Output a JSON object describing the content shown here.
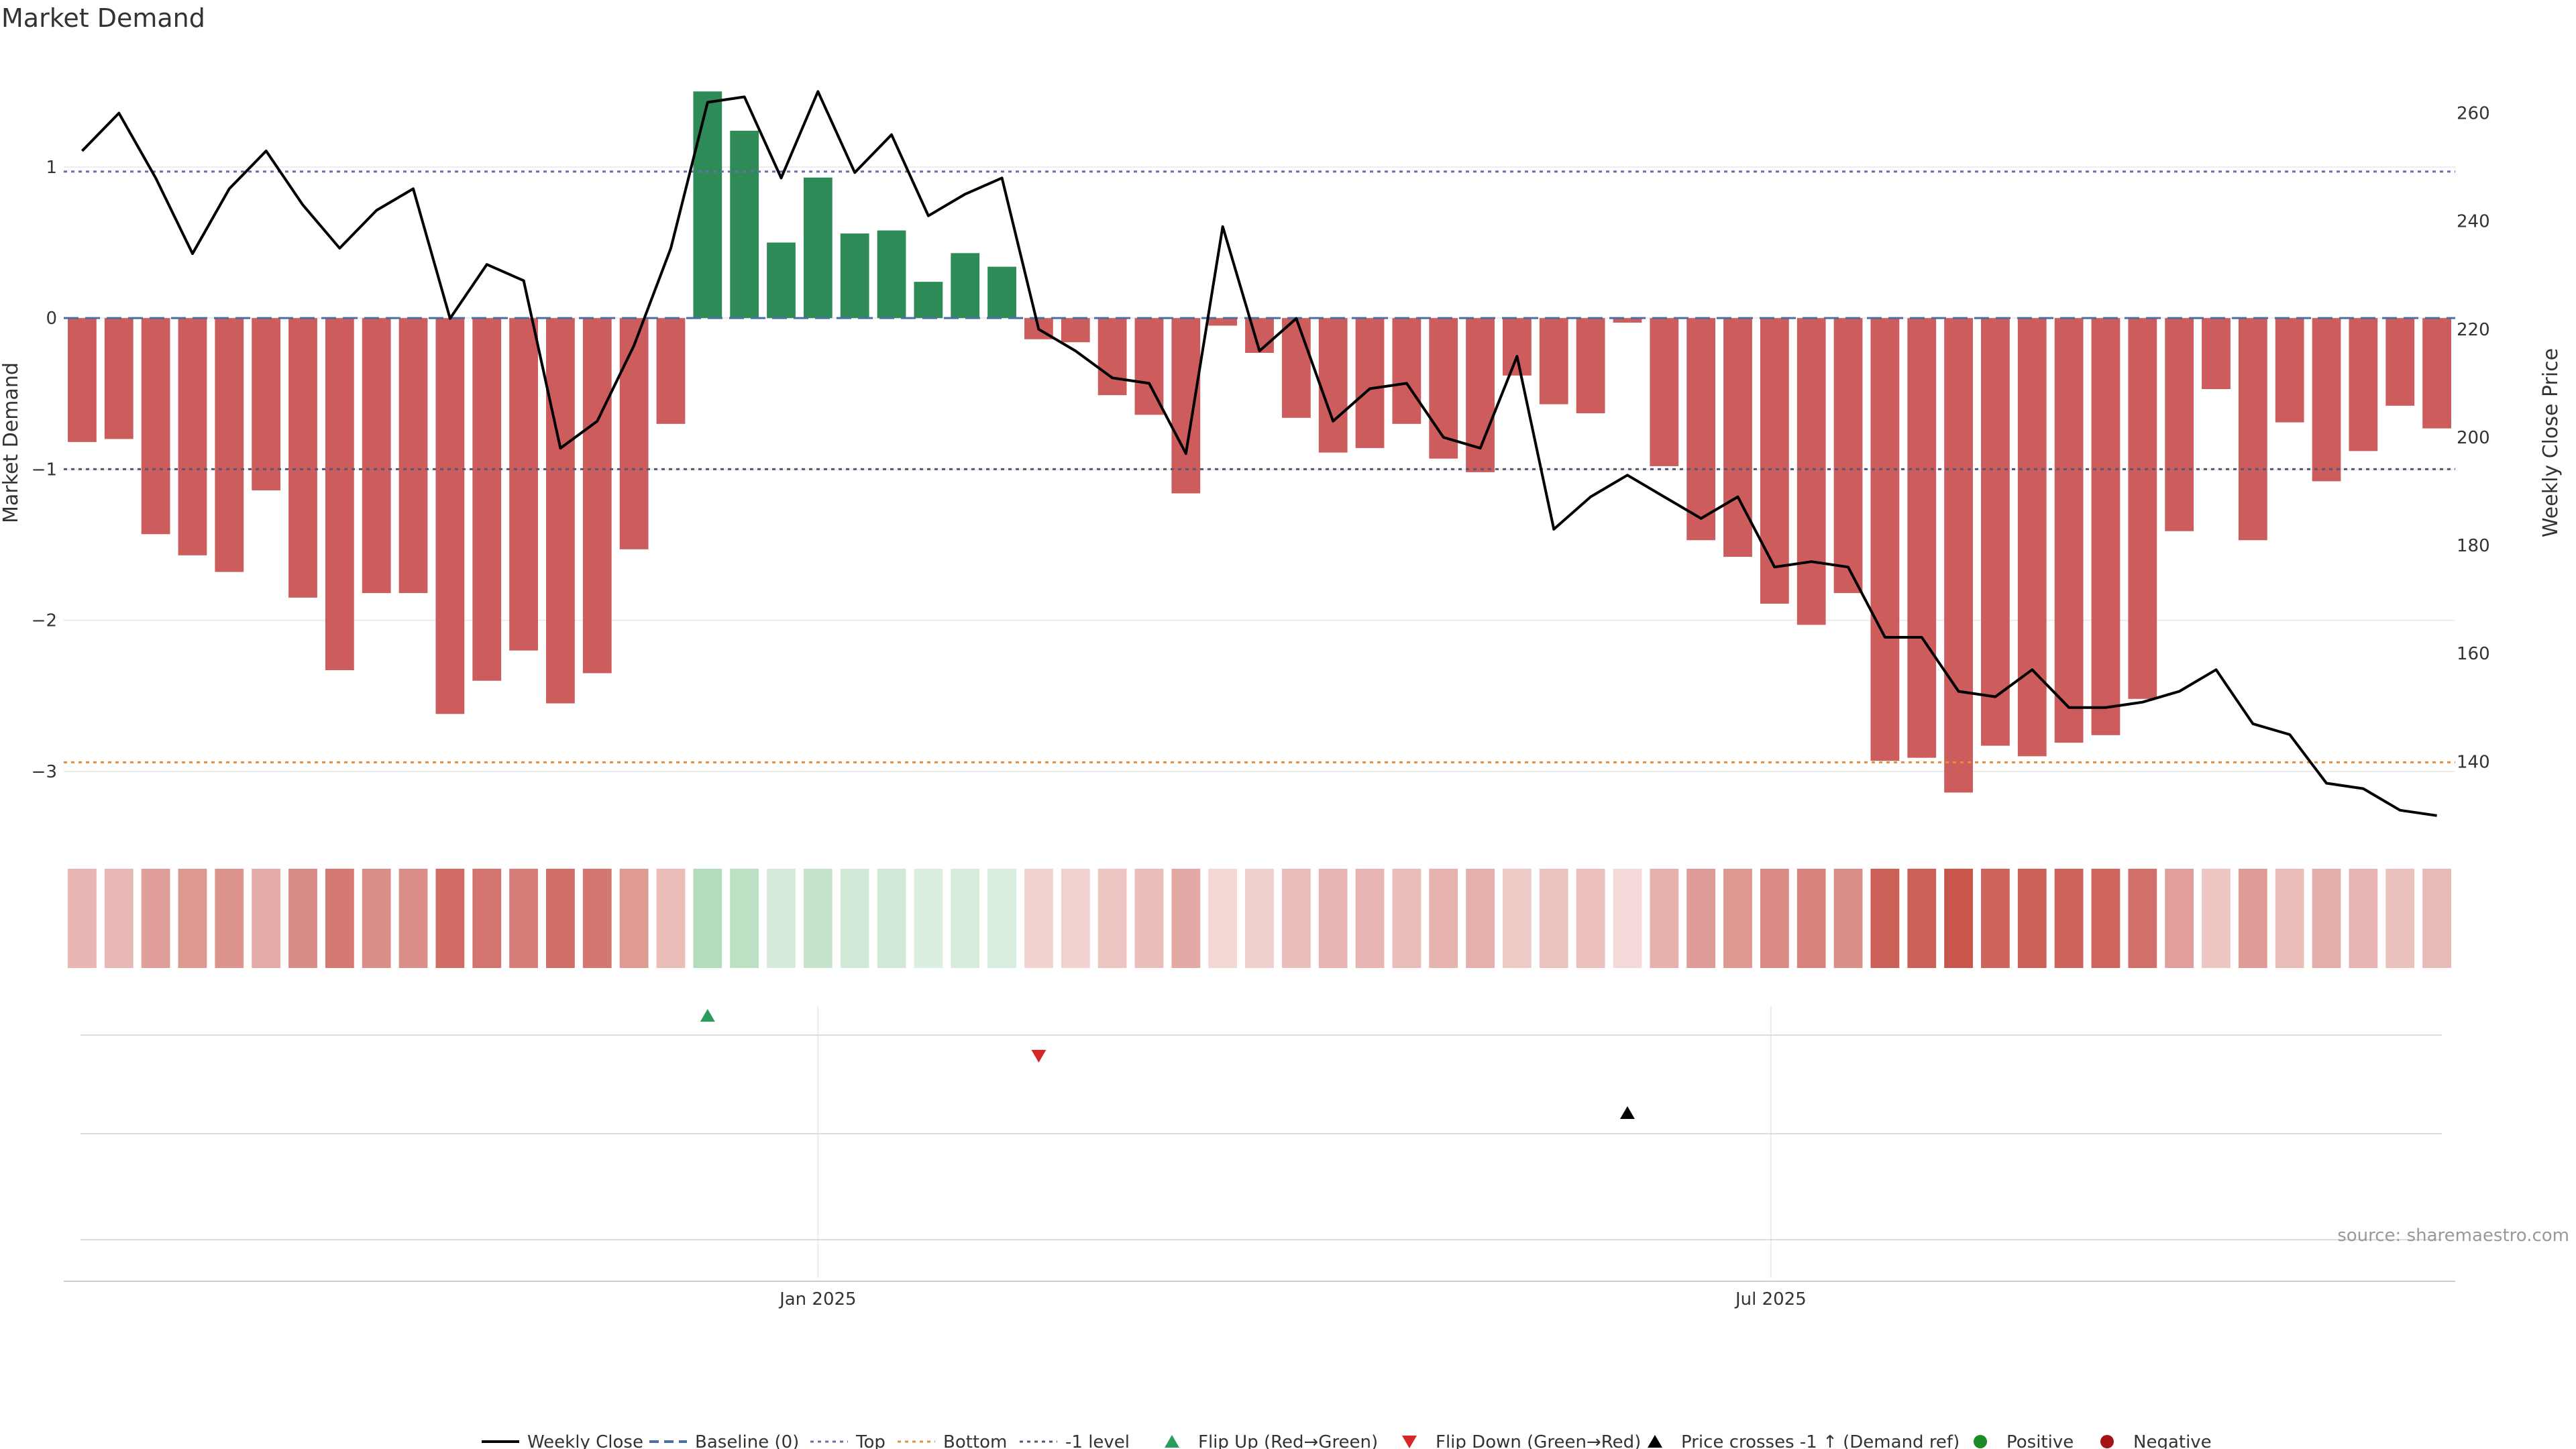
{
  "chart_data": {
    "type": "bar",
    "title": "Market Demand",
    "ylabel": "Market Demand",
    "y2label": "Weekly Close Price",
    "ylim": [
      -3.4,
      1.75
    ],
    "y_ticks": [
      1,
      0,
      -1,
      -2,
      -3
    ],
    "y_tick_labels": [
      "1",
      "0",
      "−1",
      "−2",
      "−3"
    ],
    "y2lim": [
      127,
      271
    ],
    "y2_ticks": [
      260,
      240,
      220,
      200,
      180,
      160,
      140
    ],
    "x_tick_labels": [
      "Jan 2025",
      "Jul 2025"
    ],
    "x_tick_positions": [
      20.5,
      46.4
    ],
    "n_weeks": 65,
    "reference_lines": {
      "top": 0.97,
      "bottom": -2.94,
      "minus_one": -1.0,
      "baseline": 0
    },
    "demand": [
      -0.82,
      -0.8,
      -1.43,
      -1.57,
      -1.68,
      -1.14,
      -1.85,
      -2.33,
      -1.82,
      -1.82,
      -2.62,
      -2.4,
      -2.2,
      -2.55,
      -2.35,
      -1.53,
      -0.7,
      1.5,
      1.24,
      0.5,
      0.93,
      0.56,
      0.58,
      0.24,
      0.43,
      0.34,
      -0.14,
      -0.16,
      -0.51,
      -0.64,
      -1.16,
      -0.05,
      -0.23,
      -0.66,
      -0.89,
      -0.86,
      -0.7,
      -0.93,
      -1.02,
      -0.38,
      -0.57,
      -0.63,
      -0.03,
      -0.98,
      -1.47,
      -1.58,
      -1.89,
      -2.03,
      -1.82,
      -2.93,
      -2.91,
      -3.14,
      -2.83,
      -2.9,
      -2.81,
      -2.76,
      -2.52,
      -1.41,
      -0.47,
      -1.47,
      -0.69,
      -1.08,
      -0.88,
      -0.58,
      -0.73
    ],
    "weekly_close": [
      253,
      260,
      248,
      234,
      246,
      253,
      243,
      235,
      242,
      246,
      222,
      232,
      229,
      198,
      203,
      217,
      235,
      262,
      263,
      248,
      264,
      249,
      256,
      241,
      245,
      248,
      220,
      216,
      211,
      210,
      197,
      239,
      216,
      222,
      203,
      209,
      210,
      200,
      198,
      215,
      183,
      189,
      193,
      189,
      185,
      189,
      176,
      177,
      176,
      163,
      163,
      153,
      152,
      157,
      150,
      150,
      151,
      153,
      157,
      147,
      145,
      136,
      135,
      131,
      130
    ],
    "signals": {
      "flip_up": [
        17
      ],
      "flip_down": [
        26
      ],
      "price_crosses_minus_one_up": [
        42
      ]
    },
    "legend": [
      {
        "label": "Weekly Close",
        "symbol": "line",
        "color": "#000000"
      },
      {
        "label": "Baseline (0)",
        "symbol": "dash",
        "color": "#4a6fa5"
      },
      {
        "label": "Top",
        "symbol": "dot",
        "color": "#6b6bb0"
      },
      {
        "label": "Bottom",
        "symbol": "dot",
        "color": "#e0913b"
      },
      {
        "label": "-1 level",
        "symbol": "dot",
        "color": "#555577"
      },
      {
        "label": "Flip Up (Red→Green)",
        "symbol": "tri-up",
        "color": "#2a9d5c"
      },
      {
        "label": "Flip Down (Green→Red)",
        "symbol": "tri-down",
        "color": "#d62728"
      },
      {
        "label": "Price crosses -1 ↑ (Demand ref)",
        "symbol": "tri-up",
        "color": "#000000"
      },
      {
        "label": "Positive",
        "symbol": "circle",
        "color": "#1f8a2a"
      },
      {
        "label": "Negative",
        "symbol": "circle",
        "color": "#a31515"
      }
    ],
    "colors": {
      "positive": "#2e8b57",
      "negative": "#cd5c5c",
      "heat_pos": "#7fc48f",
      "heat_neg": "#c9564d"
    },
    "source": "source: sharemaestro.com"
  }
}
